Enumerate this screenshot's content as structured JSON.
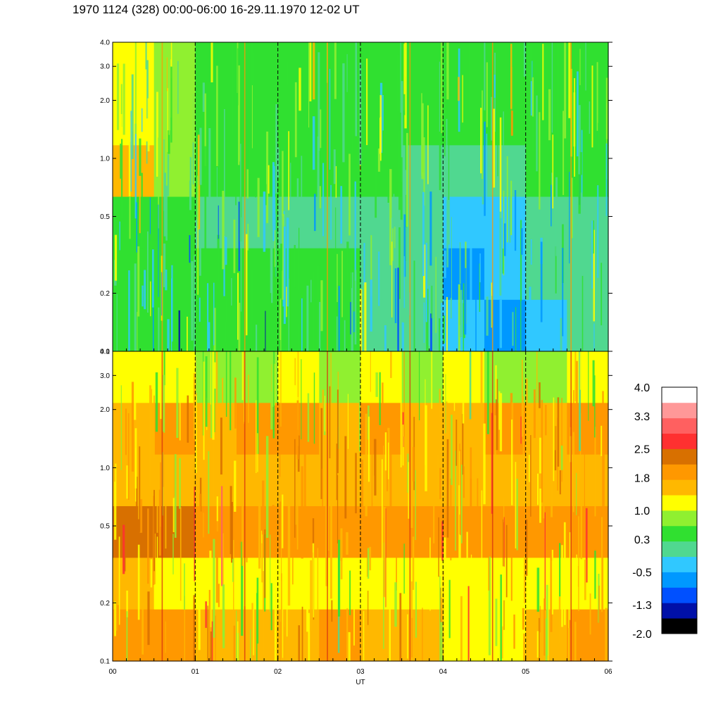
{
  "title": "1970 1124 (328) 00:00-06:00 16-29.11.1970  12-02 UT",
  "chart_data": {
    "type": "heatmap",
    "xlabel": "UT",
    "x_ticks": [
      "00",
      "01",
      "02",
      "03",
      "04",
      "05",
      "06"
    ],
    "xlim": [
      0,
      6
    ],
    "y_scale": "log",
    "ylim": [
      0.1,
      4.0
    ],
    "y_ticks": [
      {
        "value": 0.1,
        "label": "0.1"
      },
      {
        "value": 0.2,
        "label": "0.2"
      },
      {
        "value": 0.5,
        "label": "0.5"
      },
      {
        "value": 1.0,
        "label": "1.0"
      },
      {
        "value": 2.0,
        "label": "2.0"
      },
      {
        "value": 3.0,
        "label": "3.0"
      },
      {
        "value": 4.0,
        "label": "4.0"
      }
    ],
    "dashed_vertical_lines_at": [
      1,
      2,
      3,
      4,
      5
    ],
    "panels": [
      {
        "name": "upper",
        "summary": "mostly green (~0.3 to 1.0), yellow-orange patch near 00:00-00:40 around 0.5-1.0, bluer regions after 04:00 at low values",
        "grid": [
          [
            1.0,
            0.7,
            0.5,
            0.6,
            0.6,
            0.5,
            0.6,
            0.5,
            0.4,
            0.6,
            0.5,
            0.5
          ],
          [
            1.1,
            0.8,
            0.5,
            0.6,
            0.5,
            0.5,
            0.6,
            0.5,
            0.4,
            0.5,
            0.5,
            0.5
          ],
          [
            1.6,
            0.9,
            0.4,
            0.4,
            0.4,
            0.4,
            0.4,
            0.2,
            0.1,
            0.2,
            0.3,
            0.3
          ],
          [
            0.6,
            0.4,
            0.2,
            0.2,
            0.1,
            0.2,
            0.1,
            -0.1,
            -0.5,
            -0.4,
            0.0,
            0.0
          ],
          [
            0.4,
            0.3,
            0.3,
            0.3,
            0.4,
            0.6,
            0.1,
            -0.1,
            -0.6,
            -0.5,
            0.0,
            0.1
          ],
          [
            0.4,
            0.4,
            0.4,
            0.4,
            0.4,
            0.6,
            0.2,
            0.0,
            -0.4,
            -0.7,
            -0.2,
            0.2
          ]
        ]
      },
      {
        "name": "lower",
        "summary": "mostly orange/yellow (~1.0 to 2.2), darker orange near 00:00-00:40 around 0.6-1.0",
        "grid": [
          [
            1.0,
            1.0,
            0.9,
            0.9,
            1.0,
            0.9,
            1.0,
            0.9,
            1.0,
            0.9,
            0.9,
            1.0
          ],
          [
            1.7,
            1.8,
            1.7,
            1.9,
            1.8,
            1.7,
            1.8,
            1.7,
            1.7,
            1.8,
            1.7,
            1.8
          ],
          [
            1.6,
            1.7,
            1.5,
            1.5,
            1.6,
            1.5,
            1.5,
            1.4,
            1.5,
            1.4,
            1.5,
            1.6
          ],
          [
            2.4,
            2.2,
            1.8,
            1.8,
            1.9,
            1.9,
            1.9,
            1.8,
            1.8,
            1.9,
            1.8,
            1.8
          ],
          [
            1.6,
            1.2,
            1.1,
            1.1,
            1.0,
            1.2,
            1.0,
            1.0,
            1.0,
            1.0,
            1.1,
            1.0
          ],
          [
            2.0,
            1.8,
            1.7,
            1.7,
            1.7,
            1.8,
            1.6,
            1.5,
            1.3,
            1.3,
            1.4,
            1.8
          ]
        ]
      }
    ],
    "colorbar": {
      "labels": [
        "4.0",
        "3.3",
        "2.5",
        "1.8",
        "1.0",
        "0.3",
        "-0.5",
        "-1.3",
        "-2.0"
      ],
      "min": -2.0,
      "max": 4.0,
      "colors": [
        "#000000",
        "#0010a8",
        "#0050ff",
        "#0098ff",
        "#30c8ff",
        "#50d890",
        "#30e030",
        "#90f030",
        "#ffff00",
        "#ffb800",
        "#ff9800",
        "#d87000",
        "#ff3030",
        "#ff6060",
        "#ff9898",
        "#ffffff"
      ]
    }
  }
}
